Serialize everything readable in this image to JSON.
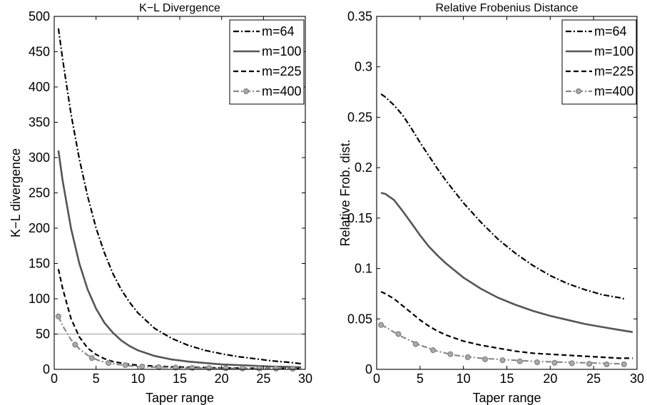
{
  "chart_data": [
    {
      "type": "line",
      "title": "K−L Divergence",
      "xlabel": "Taper range",
      "ylabel": "K−L divergence",
      "xlim": [
        0,
        30
      ],
      "ylim": [
        0,
        500
      ],
      "xticks": [
        0,
        5,
        10,
        15,
        20,
        25,
        30
      ],
      "yticks": [
        0,
        50,
        100,
        150,
        200,
        250,
        300,
        350,
        400,
        450,
        500
      ],
      "grid": false,
      "legend_position": "top-right",
      "reference_line": {
        "y": 50,
        "color": "#b0b0b0"
      },
      "x": [
        0.5,
        1,
        2,
        3,
        4,
        5,
        6,
        7,
        8,
        9,
        10,
        12,
        14,
        16,
        18,
        20,
        22,
        24,
        26,
        28,
        29.5
      ],
      "series": [
        {
          "name": "m=64",
          "style": "dashdot",
          "color": "#000000",
          "values": [
            483,
            440,
            362,
            298,
            245,
            200,
            165,
            136,
            113,
            95,
            80,
            58,
            44,
            34,
            27,
            22,
            18,
            15,
            12,
            10,
            8
          ]
        },
        {
          "name": "m=100",
          "style": "solid",
          "color": "#555555",
          "values": [
            310,
            268,
            200,
            150,
            113,
            86,
            66,
            52,
            41,
            33,
            27,
            19,
            14,
            11,
            9,
            7,
            6,
            5,
            4,
            3.5,
            3
          ]
        },
        {
          "name": "m=225",
          "style": "dashed",
          "color": "#000000",
          "values": [
            142,
            115,
            72,
            46,
            30,
            21,
            15,
            11,
            9,
            7,
            6,
            4.5,
            3.5,
            3,
            2.5,
            2,
            1.8,
            1.6,
            1.4,
            1.2,
            1
          ]
        },
        {
          "name": "m=400",
          "style": "dashdot-marker",
          "color": "#888888",
          "marker": "circle",
          "marker_x": [
            0.5,
            2.5,
            4.5,
            6.5,
            8.5,
            10.5,
            12.5,
            14.5,
            16.5,
            18.5,
            20.5,
            22.5,
            24.5,
            26.5,
            28.5
          ],
          "marker_values": [
            75,
            35,
            16,
            9,
            6,
            4,
            3,
            2.5,
            2,
            1.8,
            1.5,
            1.3,
            1.1,
            1,
            0.9
          ],
          "values": [
            75,
            62,
            42,
            29,
            20,
            14,
            10,
            8,
            6.5,
            5,
            4,
            3,
            2.5,
            2,
            1.8,
            1.5,
            1.3,
            1.2,
            1.05,
            0.95,
            0.9
          ]
        }
      ]
    },
    {
      "type": "line",
      "title": "Relative Frobenius Distance",
      "xlabel": "Taper range",
      "ylabel": "Relative Frob. dist.",
      "xlim": [
        0,
        30
      ],
      "ylim": [
        0,
        0.35
      ],
      "xticks": [
        0,
        5,
        10,
        15,
        20,
        25,
        30
      ],
      "yticks": [
        0,
        0.05,
        0.1,
        0.15,
        0.2,
        0.25,
        0.3,
        0.35
      ],
      "grid": false,
      "legend_position": "top-right",
      "x": [
        0.5,
        1,
        2,
        3,
        4,
        5,
        6,
        7,
        8,
        9,
        10,
        12,
        14,
        16,
        18,
        20,
        22,
        24,
        26,
        28,
        29.5
      ],
      "series": [
        {
          "name": "m=64",
          "style": "dashdot",
          "color": "#000000",
          "x_end": 28.5,
          "values": [
            0.273,
            0.27,
            0.262,
            0.252,
            0.239,
            0.225,
            0.212,
            0.199,
            0.187,
            0.176,
            0.165,
            0.146,
            0.129,
            0.115,
            0.103,
            0.093,
            0.085,
            0.079,
            0.074,
            0.071,
            0.07
          ]
        },
        {
          "name": "m=100",
          "style": "solid",
          "color": "#555555",
          "values": [
            0.175,
            0.174,
            0.168,
            0.157,
            0.145,
            0.133,
            0.122,
            0.113,
            0.105,
            0.098,
            0.091,
            0.08,
            0.071,
            0.064,
            0.058,
            0.053,
            0.049,
            0.045,
            0.042,
            0.039,
            0.037
          ]
        },
        {
          "name": "m=225",
          "style": "dashed",
          "color": "#000000",
          "values": [
            0.077,
            0.075,
            0.07,
            0.063,
            0.056,
            0.049,
            0.043,
            0.038,
            0.034,
            0.031,
            0.028,
            0.024,
            0.021,
            0.018,
            0.016,
            0.015,
            0.014,
            0.013,
            0.012,
            0.011,
            0.011
          ]
        },
        {
          "name": "m=400",
          "style": "dashdot-marker",
          "color": "#888888",
          "marker": "circle",
          "x_end": 28.5,
          "marker_x": [
            0.5,
            2.5,
            4.5,
            6.5,
            8.5,
            10.5,
            12.5,
            14.5,
            16.5,
            18.5,
            20.5,
            22.5,
            24.5,
            26.5,
            28.5
          ],
          "marker_values": [
            0.044,
            0.035,
            0.025,
            0.019,
            0.015,
            0.012,
            0.01,
            0.009,
            0.008,
            0.007,
            0.0065,
            0.006,
            0.0055,
            0.005,
            0.005
          ],
          "values": [
            0.044,
            0.042,
            0.037,
            0.032,
            0.028,
            0.024,
            0.021,
            0.018,
            0.016,
            0.014,
            0.013,
            0.011,
            0.01,
            0.009,
            0.008,
            0.0075,
            0.007,
            0.0065,
            0.006,
            0.0055,
            0.005
          ]
        }
      ]
    }
  ]
}
